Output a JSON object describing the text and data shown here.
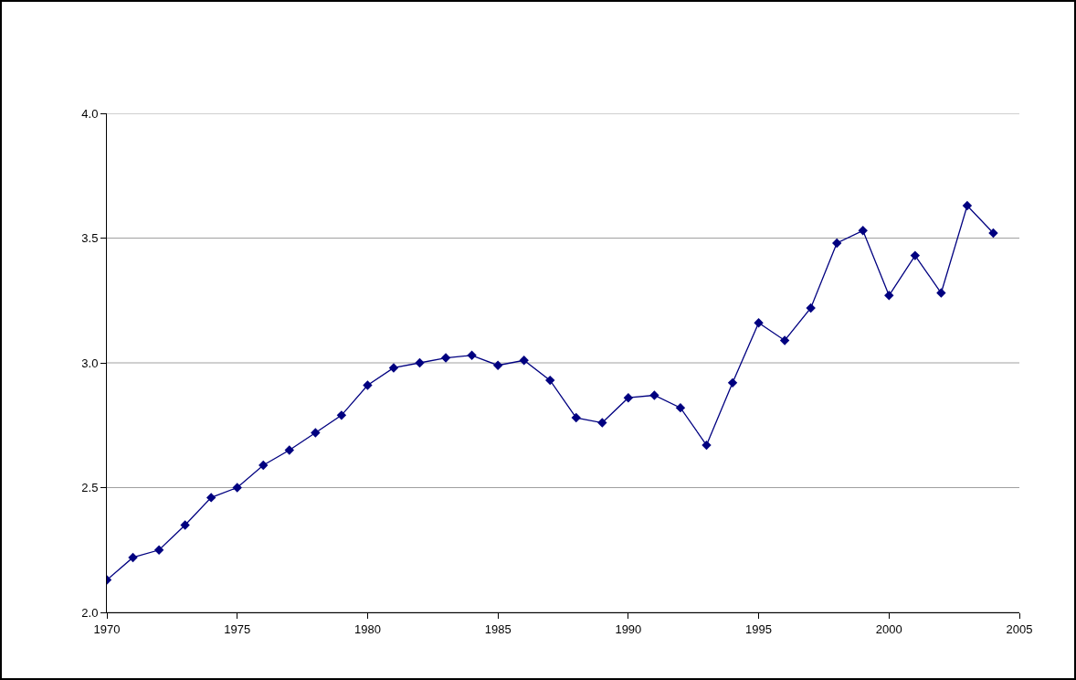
{
  "chart_data": {
    "type": "line",
    "x": [
      1970,
      1971,
      1972,
      1973,
      1974,
      1975,
      1976,
      1977,
      1978,
      1979,
      1980,
      1981,
      1982,
      1983,
      1984,
      1985,
      1986,
      1987,
      1988,
      1989,
      1990,
      1991,
      1992,
      1993,
      1994,
      1995,
      1996,
      1997,
      1998,
      1999,
      2000,
      2001,
      2002,
      2003,
      2004
    ],
    "series": [
      {
        "color": "#000080",
        "values": [
          2.13,
          2.22,
          2.25,
          2.35,
          2.46,
          2.5,
          2.59,
          2.65,
          2.72,
          2.79,
          2.91,
          2.98,
          3.0,
          3.02,
          3.03,
          2.99,
          3.01,
          2.93,
          2.78,
          2.76,
          2.86,
          2.87,
          2.82,
          2.67,
          2.92,
          3.16,
          3.09,
          3.22,
          3.48,
          3.53,
          3.27,
          3.43,
          3.28,
          3.63,
          3.52
        ]
      }
    ],
    "xlim": [
      1970,
      2005
    ],
    "xticks": [
      1970,
      1975,
      1980,
      1985,
      1990,
      1995,
      2000,
      2005
    ],
    "ylim": [
      2,
      4
    ],
    "yticks": [
      {
        "value": 2,
        "label": "2.0"
      },
      {
        "value": 2.5,
        "label": "2.5"
      },
      {
        "value": 3,
        "label": "3.0"
      },
      {
        "value": 3.5,
        "label": "3.5"
      },
      {
        "value": 4,
        "label": "4.0"
      }
    ],
    "grid": "y",
    "marker": "diamond",
    "line_style": "solid"
  }
}
